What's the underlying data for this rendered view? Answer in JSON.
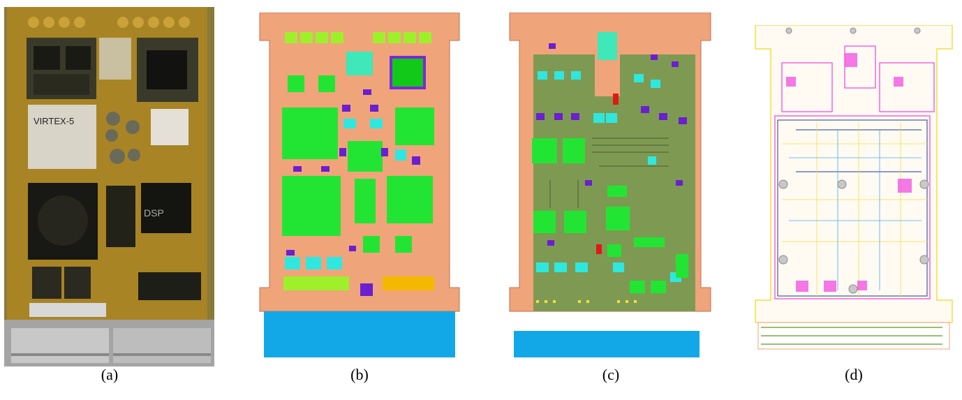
{
  "figure": {
    "panels": [
      {
        "id": "a",
        "caption": "(a)",
        "kind": "photograph",
        "chip_labels": [
          "VIRTEX-5",
          "DSP"
        ]
      },
      {
        "id": "b",
        "caption": "(b)",
        "kind": "layout-top"
      },
      {
        "id": "c",
        "caption": "(c)",
        "kind": "layout-bottom"
      },
      {
        "id": "d",
        "caption": "(d)",
        "kind": "routing-overlay"
      }
    ],
    "colors": {
      "board_copper": "#f0a47a",
      "component_green": "#22e533",
      "component_lime": "#9ef02a",
      "component_cyan": "#2ee8e0",
      "component_purple": "#6a1fd0",
      "connector_blue": "#12a8e8",
      "connector_yellow": "#f5b800",
      "ground_olive": "#7e9a52",
      "photo_gold": "#b08a2a",
      "photo_dark": "#1a1a14",
      "routing_magenta": "#f040e0",
      "routing_yellow": "#f0e040"
    }
  }
}
